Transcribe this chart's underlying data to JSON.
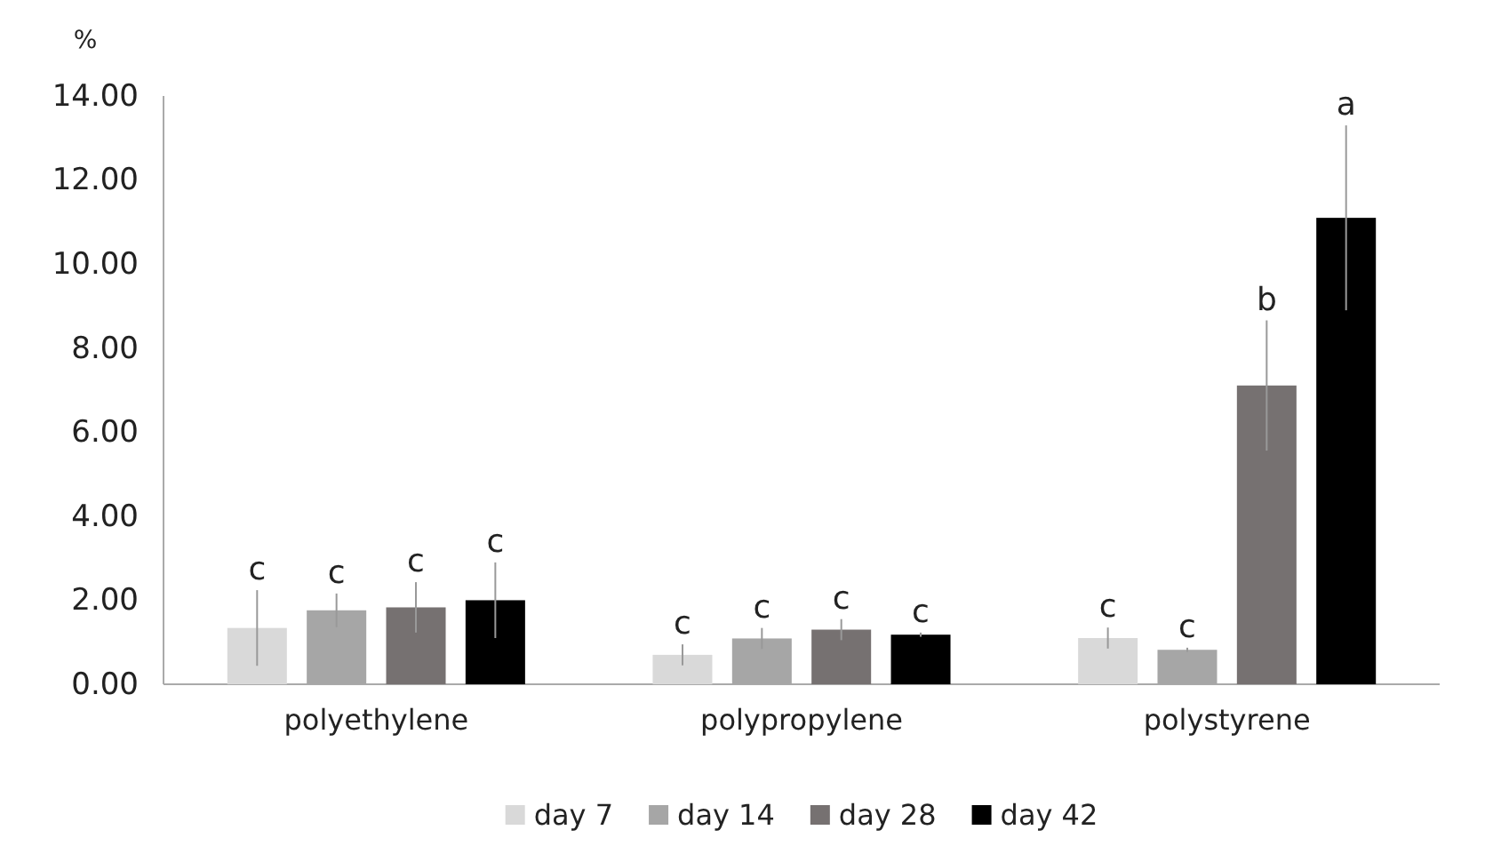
{
  "chart_data": {
    "type": "bar",
    "ylabel": "%",
    "categories": [
      "polyethylene",
      "polypropylene",
      "polystyrene"
    ],
    "series": [
      {
        "name": "day 7",
        "color": "#d9d9d9",
        "values": [
          1.34,
          0.7,
          1.1
        ],
        "errors": [
          0.9,
          0.25,
          0.25
        ],
        "value_labels": [
          "c",
          "c",
          "c"
        ]
      },
      {
        "name": "day 14",
        "color": "#a6a6a6",
        "values": [
          1.76,
          1.09,
          0.82
        ],
        "errors": [
          0.4,
          0.25,
          0.05
        ],
        "value_labels": [
          "c",
          "c",
          "c"
        ]
      },
      {
        "name": "day 28",
        "color": "#767171",
        "values": [
          1.83,
          1.3,
          7.11
        ],
        "errors": [
          0.6,
          0.25,
          1.55
        ],
        "value_labels": [
          "c",
          "c",
          "b"
        ]
      },
      {
        "name": "day 42",
        "color": "#000000",
        "values": [
          2.0,
          1.18,
          11.1
        ],
        "errors": [
          0.9,
          0.05,
          2.2
        ],
        "value_labels": [
          "c",
          "c",
          "a"
        ]
      }
    ],
    "ylim": [
      0,
      14
    ],
    "yticks": [
      {
        "value": 0,
        "label": "0.00"
      },
      {
        "value": 2,
        "label": "2.00"
      },
      {
        "value": 4,
        "label": "4.00"
      },
      {
        "value": 6,
        "label": "6.00"
      },
      {
        "value": 8,
        "label": "8.00"
      },
      {
        "value": 10,
        "label": "10.00"
      },
      {
        "value": 12,
        "label": "12.00"
      },
      {
        "value": 14,
        "label": "14.00"
      }
    ],
    "grid": false,
    "legend": "bottom"
  }
}
